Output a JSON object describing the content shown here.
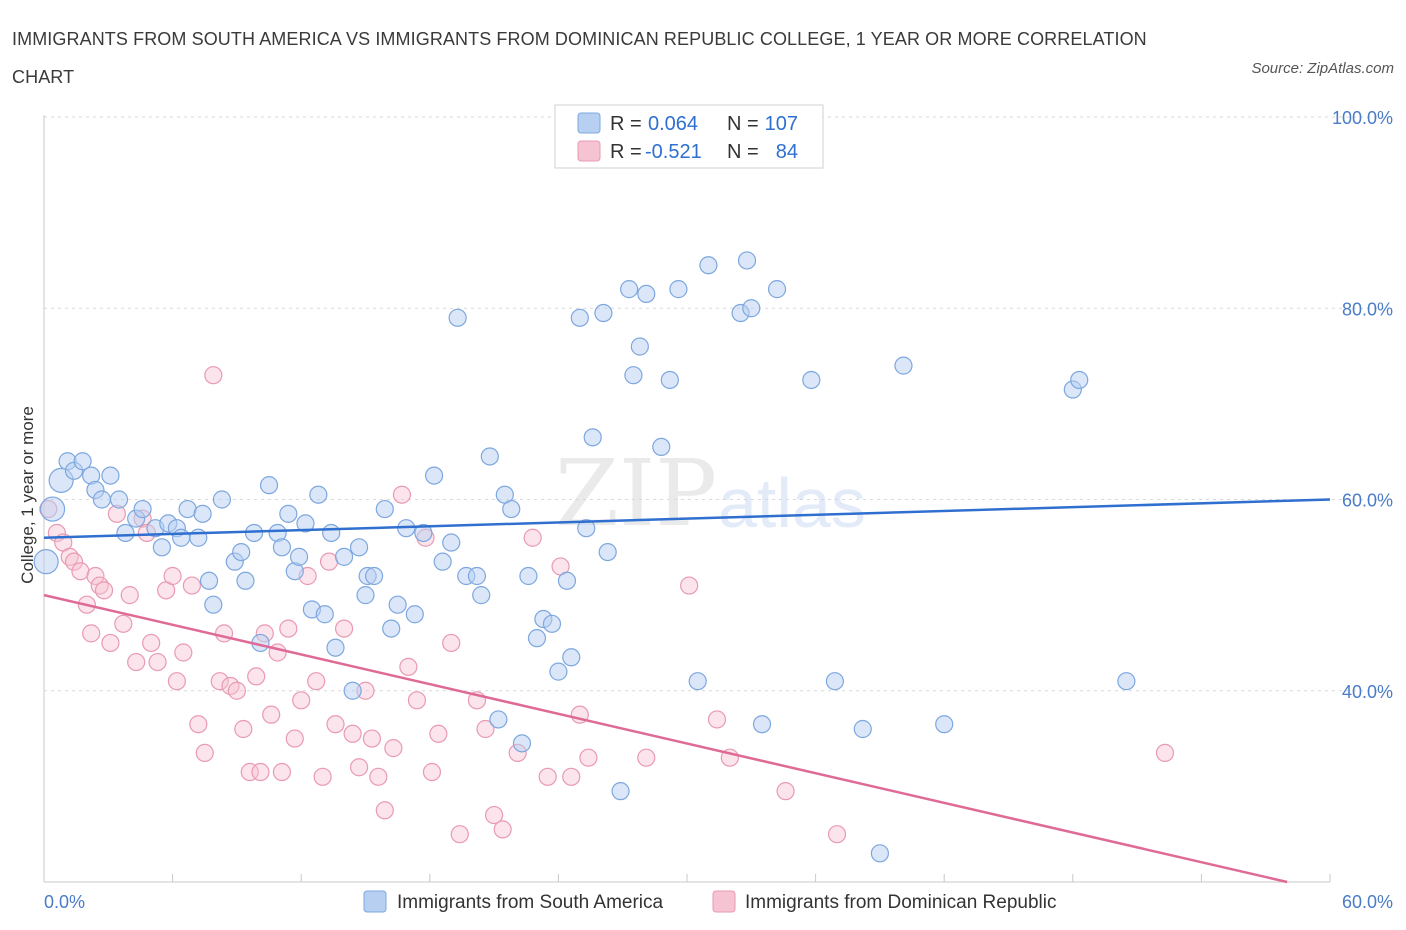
{
  "title": "IMMIGRANTS FROM SOUTH AMERICA VS IMMIGRANTS FROM DOMINICAN REPUBLIC COLLEGE, 1 YEAR OR MORE CORRELATION CHART",
  "source": "Source: ZipAtlas.com",
  "watermark": {
    "zip": "ZIP",
    "atlas": "atlas"
  },
  "colors": {
    "blue_fill": "#b7d0f2",
    "blue_stroke": "#7da7df",
    "blue_line": "#2f6fcf",
    "pink_fill": "#f6c3d2",
    "pink_stroke": "#e99ab3",
    "pink_line": "#e06a96",
    "value_text": "#2f6fcf",
    "grid": "#d9d9d9"
  },
  "legend": {
    "rows": [
      {
        "r_label": "R =",
        "r_value": "0.064",
        "n_label": "N =",
        "n_value": "107"
      },
      {
        "r_label": "R =",
        "r_value": "-0.521",
        "n_label": "N =",
        "n_value": "84"
      }
    ]
  },
  "chart_data": {
    "type": "scatter",
    "title": "IMMIGRANTS FROM SOUTH AMERICA VS IMMIGRANTS FROM DOMINICAN REPUBLIC COLLEGE, 1 YEAR OR MORE CORRELATION CHART",
    "xlabel": "",
    "ylabel": "College, 1 year or more",
    "xlim": [
      0,
      60
    ],
    "ylim": [
      20,
      100
    ],
    "x_tick_labels": [
      "0.0%",
      "60.0%"
    ],
    "y_tick_labels": [
      "100.0%",
      "80.0%",
      "60.0%",
      "40.0%"
    ],
    "y_tick_values": [
      100,
      80,
      60,
      40
    ],
    "grid": true,
    "legend_position": "top-center",
    "series": [
      {
        "name": "Immigrants from South America",
        "color": "#b7d0f2",
        "R": 0.064,
        "N": 107,
        "trend": [
          [
            0,
            56.0
          ],
          [
            60,
            60.0
          ]
        ],
        "points": [
          [
            0.1,
            53.5
          ],
          [
            0.4,
            59.0
          ],
          [
            0.8,
            62.0
          ],
          [
            1.1,
            64.0
          ],
          [
            1.4,
            63.0
          ],
          [
            1.8,
            64.0
          ],
          [
            2.2,
            62.5
          ],
          [
            2.4,
            61.0
          ],
          [
            2.7,
            60.0
          ],
          [
            3.1,
            62.5
          ],
          [
            3.5,
            60.0
          ],
          [
            3.8,
            56.5
          ],
          [
            4.3,
            58.0
          ],
          [
            4.6,
            59.0
          ],
          [
            5.2,
            57.0
          ],
          [
            5.5,
            55.0
          ],
          [
            5.8,
            57.5
          ],
          [
            6.2,
            57.0
          ],
          [
            6.4,
            56.0
          ],
          [
            6.7,
            59.0
          ],
          [
            7.2,
            56.0
          ],
          [
            7.4,
            58.5
          ],
          [
            7.7,
            51.5
          ],
          [
            7.9,
            49.0
          ],
          [
            8.3,
            60.0
          ],
          [
            8.9,
            53.5
          ],
          [
            9.2,
            54.5
          ],
          [
            9.4,
            51.5
          ],
          [
            9.8,
            56.5
          ],
          [
            10.1,
            45.0
          ],
          [
            10.5,
            61.5
          ],
          [
            10.9,
            56.5
          ],
          [
            11.1,
            55.0
          ],
          [
            11.4,
            58.5
          ],
          [
            11.7,
            52.5
          ],
          [
            11.9,
            54.0
          ],
          [
            12.2,
            57.5
          ],
          [
            12.5,
            48.5
          ],
          [
            12.8,
            60.5
          ],
          [
            13.1,
            48.0
          ],
          [
            13.4,
            56.5
          ],
          [
            13.6,
            44.5
          ],
          [
            14.0,
            54.0
          ],
          [
            14.4,
            40.0
          ],
          [
            14.7,
            55.0
          ],
          [
            15.1,
            52.0
          ],
          [
            15.0,
            50.0
          ],
          [
            15.4,
            52.0
          ],
          [
            15.9,
            59.0
          ],
          [
            16.2,
            46.5
          ],
          [
            16.5,
            49.0
          ],
          [
            16.9,
            57.0
          ],
          [
            17.3,
            48.0
          ],
          [
            17.7,
            56.5
          ],
          [
            18.2,
            62.5
          ],
          [
            18.6,
            53.5
          ],
          [
            19.0,
            55.5
          ],
          [
            19.3,
            79.0
          ],
          [
            19.7,
            52.0
          ],
          [
            20.2,
            52.0
          ],
          [
            20.4,
            50.0
          ],
          [
            20.8,
            64.5
          ],
          [
            21.2,
            37.0
          ],
          [
            21.5,
            60.5
          ],
          [
            21.8,
            59.0
          ],
          [
            22.3,
            34.5
          ],
          [
            22.6,
            52.0
          ],
          [
            23.0,
            45.5
          ],
          [
            23.3,
            47.5
          ],
          [
            23.7,
            47.0
          ],
          [
            24.0,
            42.0
          ],
          [
            24.4,
            51.5
          ],
          [
            24.6,
            43.5
          ],
          [
            25.0,
            79.0
          ],
          [
            25.3,
            57.0
          ],
          [
            25.6,
            66.5
          ],
          [
            26.1,
            79.5
          ],
          [
            26.3,
            54.5
          ],
          [
            26.9,
            29.5
          ],
          [
            27.3,
            82.0
          ],
          [
            27.5,
            73.0
          ],
          [
            27.8,
            76.0
          ],
          [
            28.1,
            81.5
          ],
          [
            28.8,
            65.5
          ],
          [
            29.2,
            72.5
          ],
          [
            29.6,
            82.0
          ],
          [
            30.5,
            41.0
          ],
          [
            31.0,
            84.5
          ],
          [
            32.5,
            79.5
          ],
          [
            32.8,
            85.0
          ],
          [
            33.0,
            80.0
          ],
          [
            33.5,
            36.5
          ],
          [
            34.2,
            82.0
          ],
          [
            35.8,
            72.5
          ],
          [
            36.9,
            41.0
          ],
          [
            38.2,
            36.0
          ],
          [
            39.0,
            23.0
          ],
          [
            40.1,
            74.0
          ],
          [
            42.0,
            36.5
          ],
          [
            48.0,
            71.5
          ],
          [
            48.3,
            72.5
          ],
          [
            50.5,
            41.0
          ]
        ]
      },
      {
        "name": "Immigrants from Dominican Republic",
        "color": "#f6c3d2",
        "R": -0.521,
        "N": 84,
        "trend": [
          [
            0,
            50.0
          ],
          [
            58,
            20.0
          ]
        ],
        "points": [
          [
            0.2,
            59.0
          ],
          [
            0.6,
            56.5
          ],
          [
            0.9,
            55.5
          ],
          [
            1.2,
            54.0
          ],
          [
            1.4,
            53.5
          ],
          [
            1.7,
            52.5
          ],
          [
            2.0,
            49.0
          ],
          [
            2.2,
            46.0
          ],
          [
            2.4,
            52.0
          ],
          [
            2.6,
            51.0
          ],
          [
            2.8,
            50.5
          ],
          [
            3.1,
            45.0
          ],
          [
            3.4,
            58.5
          ],
          [
            3.7,
            47.0
          ],
          [
            4.0,
            50.0
          ],
          [
            4.3,
            43.0
          ],
          [
            4.6,
            58.0
          ],
          [
            4.8,
            56.5
          ],
          [
            5.0,
            45.0
          ],
          [
            5.3,
            43.0
          ],
          [
            5.7,
            50.5
          ],
          [
            6.0,
            52.0
          ],
          [
            6.2,
            41.0
          ],
          [
            6.5,
            44.0
          ],
          [
            6.9,
            51.0
          ],
          [
            7.2,
            36.5
          ],
          [
            7.5,
            33.5
          ],
          [
            7.9,
            73.0
          ],
          [
            8.2,
            41.0
          ],
          [
            8.4,
            46.0
          ],
          [
            8.7,
            40.5
          ],
          [
            9.0,
            40.0
          ],
          [
            9.3,
            36.0
          ],
          [
            9.6,
            31.5
          ],
          [
            9.9,
            41.5
          ],
          [
            10.1,
            31.5
          ],
          [
            10.3,
            46.0
          ],
          [
            10.6,
            37.5
          ],
          [
            10.9,
            44.0
          ],
          [
            11.1,
            31.5
          ],
          [
            11.4,
            46.5
          ],
          [
            11.7,
            35.0
          ],
          [
            12.0,
            39.0
          ],
          [
            12.3,
            52.0
          ],
          [
            12.7,
            41.0
          ],
          [
            13.0,
            31.0
          ],
          [
            13.3,
            53.5
          ],
          [
            13.6,
            36.5
          ],
          [
            14.0,
            46.5
          ],
          [
            14.4,
            35.5
          ],
          [
            14.7,
            32.0
          ],
          [
            15.0,
            40.0
          ],
          [
            15.3,
            35.0
          ],
          [
            15.6,
            31.0
          ],
          [
            15.9,
            27.5
          ],
          [
            16.3,
            34.0
          ],
          [
            16.7,
            60.5
          ],
          [
            17.0,
            42.5
          ],
          [
            17.4,
            39.0
          ],
          [
            17.8,
            56.0
          ],
          [
            18.1,
            31.5
          ],
          [
            18.4,
            35.5
          ],
          [
            19.0,
            45.0
          ],
          [
            19.4,
            25.0
          ],
          [
            20.2,
            39.0
          ],
          [
            20.6,
            36.0
          ],
          [
            21.0,
            27.0
          ],
          [
            21.4,
            25.5
          ],
          [
            22.1,
            33.5
          ],
          [
            22.8,
            56.0
          ],
          [
            23.5,
            31.0
          ],
          [
            24.1,
            53.0
          ],
          [
            24.6,
            31.0
          ],
          [
            25.0,
            37.5
          ],
          [
            25.4,
            33.0
          ],
          [
            28.1,
            33.0
          ],
          [
            30.1,
            51.0
          ],
          [
            31.4,
            37.0
          ],
          [
            32.0,
            33.0
          ],
          [
            34.6,
            29.5
          ],
          [
            37.0,
            25.0
          ],
          [
            52.3,
            33.5
          ]
        ]
      }
    ]
  },
  "bottom_legend": {
    "items": [
      "Immigrants from South America",
      "Immigrants from Dominican Republic"
    ]
  }
}
